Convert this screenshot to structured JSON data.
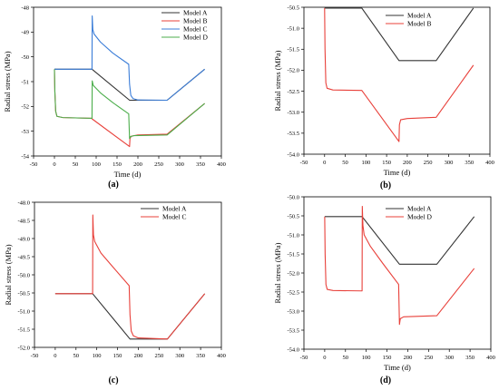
{
  "colors": {
    "model_a": "#333333",
    "model_b": "#e8403a",
    "model_c": "#3b7dd8",
    "model_d": "#4cae4c",
    "axis": "#000000",
    "background": "#ffffff"
  },
  "chart_data": [
    {
      "type": "line",
      "panel_label": "(a)",
      "xlabel": "Time (d)",
      "ylabel": "Radial stress (MPa)",
      "xlim": [
        -50,
        400
      ],
      "ylim": [
        -54,
        -48
      ],
      "xticks": [
        -50,
        0,
        50,
        100,
        150,
        200,
        250,
        300,
        350,
        400
      ],
      "yticks": [
        -54,
        -53,
        -52,
        -51,
        -50,
        -49,
        -48
      ],
      "legend_position": "top-right",
      "grid": false,
      "series": [
        {
          "name": "Model A",
          "color_key": "model_a",
          "points": [
            [
              0,
              -50.5
            ],
            [
              90,
              -50.5
            ],
            [
              180,
              -51.75
            ],
            [
              270,
              -51.75
            ],
            [
              360,
              -50.5
            ]
          ]
        },
        {
          "name": "Model B",
          "color_key": "model_b",
          "points": [
            [
              0,
              -50.5
            ],
            [
              1,
              -51.4
            ],
            [
              3,
              -52.2
            ],
            [
              6,
              -52.4
            ],
            [
              20,
              -52.45
            ],
            [
              90,
              -52.48
            ],
            [
              90,
              -52.5
            ],
            [
              180,
              -53.62
            ],
            [
              181,
              -53.3
            ],
            [
              184,
              -53.2
            ],
            [
              200,
              -53.15
            ],
            [
              270,
              -53.12
            ],
            [
              360,
              -51.88
            ]
          ]
        },
        {
          "name": "Model C",
          "color_key": "model_c",
          "points": [
            [
              0,
              -50.5
            ],
            [
              90,
              -50.5
            ],
            [
              90.5,
              -48.35
            ],
            [
              92,
              -48.9
            ],
            [
              95,
              -49.08
            ],
            [
              110,
              -49.4
            ],
            [
              140,
              -49.85
            ],
            [
              178,
              -50.3
            ],
            [
              180,
              -51.1
            ],
            [
              183,
              -51.55
            ],
            [
              188,
              -51.68
            ],
            [
              200,
              -51.74
            ],
            [
              270,
              -51.75
            ],
            [
              360,
              -50.5
            ]
          ]
        },
        {
          "name": "Model D",
          "color_key": "model_d",
          "points": [
            [
              0,
              -50.5
            ],
            [
              1,
              -51.4
            ],
            [
              3,
              -52.2
            ],
            [
              6,
              -52.4
            ],
            [
              20,
              -52.45
            ],
            [
              90,
              -52.48
            ],
            [
              90.5,
              -50.97
            ],
            [
              93,
              -51.15
            ],
            [
              110,
              -51.45
            ],
            [
              140,
              -51.85
            ],
            [
              178,
              -52.3
            ],
            [
              180,
              -53.3
            ],
            [
              182,
              -53.22
            ],
            [
              190,
              -53.18
            ],
            [
              270,
              -53.15
            ],
            [
              360,
              -51.88
            ]
          ]
        }
      ]
    },
    {
      "type": "line",
      "panel_label": "(b)",
      "xlabel": "Time (d)",
      "ylabel": "Radial stress (MPa)",
      "xlim": [
        -50,
        400
      ],
      "ylim": [
        -54,
        -50.5
      ],
      "xticks": [
        -50,
        0,
        50,
        100,
        150,
        200,
        250,
        300,
        350,
        400
      ],
      "yticks": [
        -54.0,
        -53.5,
        -53.0,
        -52.5,
        -52.0,
        -51.5,
        -51.0,
        -50.5
      ],
      "legend_position": "top-right",
      "grid": false,
      "series": [
        {
          "name": "Model A",
          "color_key": "model_a",
          "points": [
            [
              0,
              -50.52
            ],
            [
              90,
              -50.52
            ],
            [
              180,
              -51.77
            ],
            [
              270,
              -51.77
            ],
            [
              360,
              -50.52
            ]
          ]
        },
        {
          "name": "Model B",
          "color_key": "model_b",
          "points": [
            [
              0,
              -50.52
            ],
            [
              1,
              -51.5
            ],
            [
              3,
              -52.3
            ],
            [
              6,
              -52.43
            ],
            [
              20,
              -52.47
            ],
            [
              90,
              -52.48
            ],
            [
              180,
              -53.7
            ],
            [
              181,
              -53.3
            ],
            [
              184,
              -53.18
            ],
            [
              200,
              -53.15
            ],
            [
              270,
              -53.12
            ],
            [
              360,
              -51.88
            ]
          ]
        }
      ]
    },
    {
      "type": "line",
      "panel_label": "(c)",
      "xlabel": "",
      "ylabel": "Radial stress (MPa)",
      "xlim": [
        -50,
        400
      ],
      "ylim": [
        -52,
        -48
      ],
      "xticks": [
        -50,
        0,
        50,
        100,
        150,
        200,
        250,
        300,
        350,
        400
      ],
      "yticks": [
        -52.0,
        -51.5,
        -51.0,
        -50.5,
        -50.0,
        -49.5,
        -49.0,
        -48.5,
        -48.0
      ],
      "legend_position": "top-right",
      "grid": false,
      "series": [
        {
          "name": "Model A",
          "color_key": "model_a",
          "points": [
            [
              0,
              -50.52
            ],
            [
              90,
              -50.52
            ],
            [
              180,
              -51.77
            ],
            [
              270,
              -51.77
            ],
            [
              360,
              -50.52
            ]
          ]
        },
        {
          "name": "Model C",
          "color_key": "model_b",
          "points": [
            [
              0,
              -50.52
            ],
            [
              90,
              -50.52
            ],
            [
              90.5,
              -48.35
            ],
            [
              92,
              -48.9
            ],
            [
              95,
              -49.08
            ],
            [
              110,
              -49.4
            ],
            [
              140,
              -49.8
            ],
            [
              178,
              -50.3
            ],
            [
              180,
              -51.1
            ],
            [
              183,
              -51.55
            ],
            [
              188,
              -51.68
            ],
            [
              200,
              -51.74
            ],
            [
              270,
              -51.77
            ],
            [
              360,
              -50.52
            ]
          ]
        }
      ]
    },
    {
      "type": "line",
      "panel_label": "(d)",
      "xlabel": "Time (d)",
      "ylabel": "Radial stress (MPa)",
      "xlim": [
        -50,
        400
      ],
      "ylim": [
        -54,
        -50
      ],
      "xticks": [
        -50,
        0,
        50,
        100,
        150,
        200,
        250,
        300,
        350,
        400
      ],
      "yticks": [
        -54.0,
        -53.5,
        -53.0,
        -52.5,
        -52.0,
        -51.5,
        -51.0,
        -50.5,
        -50.0
      ],
      "legend_position": "top-right",
      "grid": false,
      "series": [
        {
          "name": "Model A",
          "color_key": "model_a",
          "points": [
            [
              0,
              -50.52
            ],
            [
              90,
              -50.52
            ],
            [
              180,
              -51.77
            ],
            [
              270,
              -51.77
            ],
            [
              360,
              -50.52
            ]
          ]
        },
        {
          "name": "Model D",
          "color_key": "model_b",
          "points": [
            [
              0,
              -50.52
            ],
            [
              1,
              -51.5
            ],
            [
              3,
              -52.3
            ],
            [
              6,
              -52.43
            ],
            [
              20,
              -52.46
            ],
            [
              90,
              -52.47
            ],
            [
              90.5,
              -50.25
            ],
            [
              92,
              -50.75
            ],
            [
              95,
              -51.0
            ],
            [
              110,
              -51.3
            ],
            [
              140,
              -51.75
            ],
            [
              178,
              -52.3
            ],
            [
              180,
              -53.35
            ],
            [
              182,
              -53.2
            ],
            [
              190,
              -53.15
            ],
            [
              270,
              -53.12
            ],
            [
              360,
              -51.88
            ]
          ]
        }
      ]
    }
  ]
}
